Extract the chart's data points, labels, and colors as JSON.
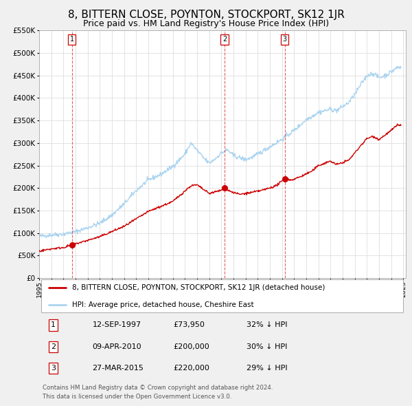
{
  "title": "8, BITTERN CLOSE, POYNTON, STOCKPORT, SK12 1JR",
  "subtitle": "Price paid vs. HM Land Registry's House Price Index (HPI)",
  "title_fontsize": 11,
  "subtitle_fontsize": 9,
  "bg_color": "#f0f0f0",
  "plot_bg_color": "#ffffff",
  "grid_color": "#d8d8d8",
  "hpi_color": "#aad4f0",
  "price_color": "#cc0000",
  "ylim": [
    0,
    550000
  ],
  "yticks": [
    0,
    50000,
    100000,
    150000,
    200000,
    250000,
    300000,
    350000,
    400000,
    450000,
    500000,
    550000
  ],
  "sale_dates": [
    1997.71,
    2010.27,
    2015.23
  ],
  "sale_prices": [
    73950,
    200000,
    220000
  ],
  "sale_labels": [
    "1",
    "2",
    "3"
  ],
  "legend_label_price": "8, BITTERN CLOSE, POYNTON, STOCKPORT, SK12 1JR (detached house)",
  "legend_label_hpi": "HPI: Average price, detached house, Cheshire East",
  "table_rows": [
    [
      "1",
      "12-SEP-1997",
      "£73,950",
      "32% ↓ HPI"
    ],
    [
      "2",
      "09-APR-2010",
      "£200,000",
      "30% ↓ HPI"
    ],
    [
      "3",
      "27-MAR-2015",
      "£220,000",
      "29% ↓ HPI"
    ]
  ],
  "footnote1": "Contains HM Land Registry data © Crown copyright and database right 2024.",
  "footnote2": "This data is licensed under the Open Government Licence v3.0."
}
